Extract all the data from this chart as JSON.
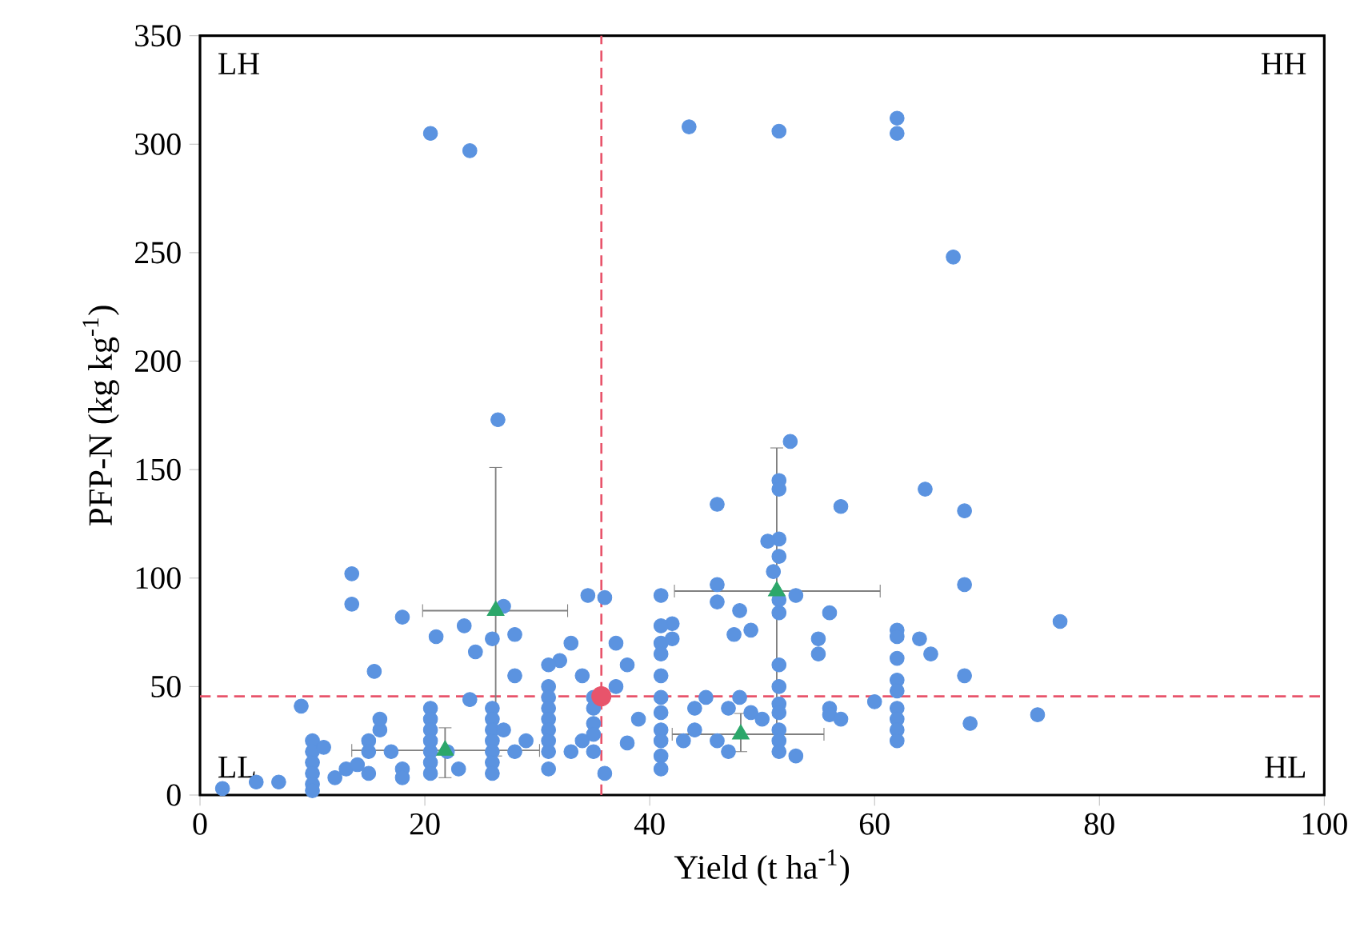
{
  "chart_data": {
    "type": "scatter",
    "xlabel": "Yield (t ha$^{-1}$)",
    "ylabel": "PFP-N (kg kg$^{-1}$)",
    "xlim": [
      0,
      100
    ],
    "ylim": [
      0,
      350
    ],
    "xticks": [
      0,
      20,
      40,
      60,
      80,
      100
    ],
    "yticks": [
      0,
      50,
      100,
      150,
      200,
      250,
      300,
      350
    ],
    "grid": false,
    "annotations": [
      "LH",
      "HH",
      "LL",
      "HL"
    ],
    "ref_lines": [
      {
        "axis": "x",
        "value": 35.7,
        "color": "#e8546b",
        "line_style": "dashed"
      },
      {
        "axis": "y",
        "value": 45.5,
        "color": "#e8546b",
        "line_style": "dashed"
      }
    ],
    "series": [
      {
        "marker": "circle",
        "color": "#5b93e0",
        "x": [
          20.5,
          24,
          43.5,
          51.5,
          62,
          62,
          67,
          26.5,
          52.5,
          51.5,
          51.5,
          64.5,
          51.5,
          50.5,
          46,
          57,
          68,
          13.5,
          13.5,
          18,
          21,
          23.5,
          24.5,
          26,
          27,
          28,
          33,
          32,
          34,
          36,
          34.5,
          41,
          42,
          41,
          41,
          42,
          46,
          46,
          47.5,
          49,
          51.5,
          56,
          55,
          55,
          51,
          51.5,
          51.5,
          48,
          64,
          65,
          68,
          68,
          76.5,
          74.5,
          68.5,
          60,
          53,
          62,
          62,
          62,
          62,
          62,
          62,
          62,
          62,
          62,
          15.5,
          20.5,
          20.5,
          20.5,
          20.5,
          20.5,
          20.5,
          20.5,
          26,
          26,
          26,
          26,
          26,
          26,
          26,
          31,
          31,
          31,
          31,
          31,
          31,
          31,
          31,
          31,
          35,
          35,
          35,
          35,
          35,
          37,
          38,
          37,
          39,
          38,
          36,
          41,
          41,
          41,
          41,
          41,
          41,
          41,
          41,
          44,
          45,
          44,
          46,
          47,
          48,
          49,
          50,
          51.5,
          51.5,
          51.5,
          51.5,
          51.5,
          51.5,
          51.5,
          53,
          56,
          56,
          57,
          43,
          47,
          10,
          10,
          10,
          10,
          10,
          10,
          2,
          5,
          7,
          9,
          12,
          13,
          14,
          15,
          15,
          16,
          17,
          18,
          18,
          16,
          22,
          23,
          24,
          27,
          28,
          28,
          29,
          33,
          34,
          15,
          11
        ],
        "values": [
          305,
          297,
          308,
          306,
          312,
          305,
          248,
          173,
          163,
          145,
          141,
          141,
          118,
          117,
          134,
          133,
          131,
          102,
          88,
          82,
          73,
          78,
          66,
          72,
          87,
          74,
          70,
          62,
          55,
          91,
          92,
          92,
          79,
          78,
          70,
          72,
          97,
          89,
          74,
          76,
          84,
          84,
          72,
          65,
          103,
          110,
          90,
          85,
          72,
          65,
          97,
          55,
          80,
          37,
          33,
          43,
          92,
          76,
          73,
          63,
          53,
          48,
          40,
          35,
          30,
          25,
          57,
          40,
          35,
          30,
          25,
          20,
          15,
          10,
          40,
          35,
          30,
          25,
          20,
          15,
          10,
          60,
          50,
          45,
          40,
          35,
          30,
          25,
          20,
          12,
          45,
          40,
          33,
          28,
          20,
          70,
          60,
          50,
          35,
          24,
          10,
          65,
          55,
          45,
          38,
          30,
          25,
          18,
          12,
          40,
          45,
          30,
          25,
          40,
          45,
          38,
          35,
          60,
          50,
          42,
          38,
          30,
          25,
          20,
          18,
          40,
          37,
          35,
          25,
          20,
          25,
          20,
          15,
          10,
          5,
          2,
          3,
          6,
          6,
          41,
          8,
          12,
          14,
          10,
          25,
          30,
          20,
          12,
          8,
          35,
          20,
          12,
          44,
          30,
          55,
          20,
          25,
          20,
          25,
          20,
          22
        ]
      },
      {
        "marker": "triangle",
        "color": "#2ca76a",
        "x": [
          26.3,
          21.8,
          51.3,
          48.1
        ],
        "values": [
          85,
          20.6,
          94,
          28
        ],
        "errors": [
          [
            18,
            151
          ],
          [
            8,
            31
          ],
          [
            28,
            160
          ],
          [
            20,
            37.6
          ]
        ],
        "xerrors": [
          [
            19.8,
            32.7
          ],
          [
            13.5,
            30.2
          ],
          [
            42.2,
            60.5
          ],
          [
            42,
            55.5
          ]
        ]
      },
      {
        "marker": "circle",
        "color": "#e8546b",
        "x": [
          35.7
        ],
        "values": [
          45.5
        ]
      }
    ]
  }
}
